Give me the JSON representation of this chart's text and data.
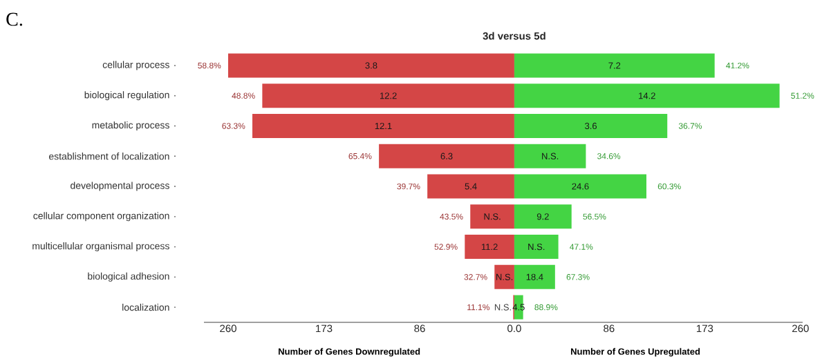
{
  "chart_data": [
    {
      "type": "bar",
      "orientation": "horizontal",
      "title": "3d versus 5d",
      "xlabel": "Number of Genes Downregulated",
      "categories": [
        "cellular process",
        "biological regulation",
        "metabolic process",
        "establishment of localization",
        "developmental process",
        "cellular component organization",
        "multicellular organismal process",
        "biological adhesion",
        "localization"
      ],
      "series": [
        {
          "color": "#d44646",
          "values": [
            260,
            229,
            238,
            123,
            79,
            40,
            45,
            18,
            1
          ]
        }
      ],
      "xlim": [
        282,
        0
      ],
      "xticks": [
        260,
        173,
        86,
        {
          "value": 0,
          "label": "0.0"
        }
      ],
      "annotations": [
        "C.",
        "3.8",
        "12.2",
        "12.1",
        "6.3",
        "5.4",
        "N.S.",
        "11.2",
        "N.S.",
        "N.S.",
        {
          "text": "58.8%",
          "x": 260,
          "y": "cellular process"
        },
        {
          "text": "48.8%",
          "x": 229,
          "y": "biological regulation"
        },
        {
          "text": "63.3%",
          "x": 238,
          "y": "metabolic process"
        },
        {
          "text": "65.4%",
          "x": 123,
          "y": "establishment of localization"
        },
        {
          "text": "39.7%",
          "x": 79,
          "y": "developmental process"
        },
        {
          "text": "43.5%",
          "x": 40,
          "y": "cellular component organization"
        },
        {
          "text": "52.9%",
          "x": 45,
          "y": "multicellular organismal process"
        },
        {
          "text": "32.7%",
          "x": 18,
          "y": "biological adhesion"
        },
        {
          "text": "11.1%",
          "x": 1,
          "y": "localization"
        }
      ]
    },
    {
      "type": "bar",
      "orientation": "horizontal",
      "xlabel": "Number of Genes Upregulated",
      "tick_labels": "x",
      "categories": [
        "cellular process",
        "biological regulation",
        "metabolic process",
        "establishment of localization",
        "developmental process",
        "cellular component organization",
        "multicellular organismal process",
        "biological adhesion",
        "localization"
      ],
      "series": [
        {
          "color": "#44d444",
          "values": [
            182,
            241,
            139,
            65,
            120,
            52,
            40,
            37,
            8
          ]
        }
      ],
      "xlim": [
        0,
        262
      ],
      "xticks": [
        86,
        173,
        260
      ],
      "annotations": [
        "7.2",
        "14.2",
        "3.6",
        "N.S.",
        "24.6",
        "9.2",
        "N.S.",
        "18.4",
        "4.5",
        {
          "text": "41.2%",
          "x": 182,
          "y": "cellular process"
        },
        {
          "text": "51.2%",
          "x": 241,
          "y": "biological regulation"
        },
        {
          "text": "36.7%",
          "x": 139,
          "y": "metabolic process"
        },
        {
          "text": "34.6%",
          "x": 65,
          "y": "establishment of localization"
        },
        {
          "text": "60.3%",
          "x": 120,
          "y": "developmental process"
        },
        {
          "text": "56.5%",
          "x": 52,
          "y": "cellular component organization"
        },
        {
          "text": "47.1%",
          "x": 40,
          "y": "multicellular organismal process"
        },
        {
          "text": "67.3%",
          "x": 37,
          "y": "biological adhesion"
        },
        {
          "text": "88.9%",
          "x": 8,
          "y": "localization"
        }
      ]
    }
  ]
}
